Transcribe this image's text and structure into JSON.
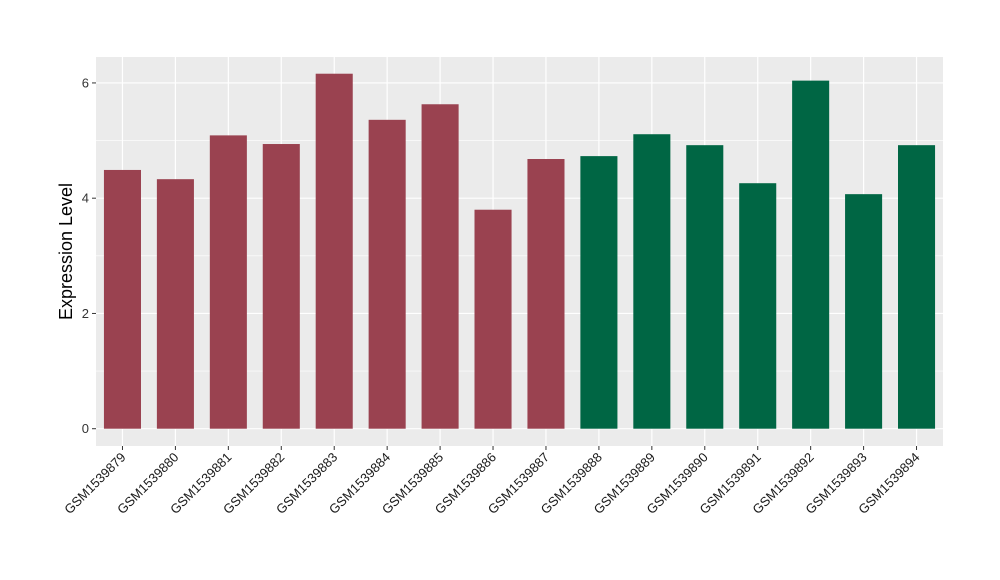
{
  "chart_data": {
    "type": "bar",
    "title": "",
    "xlabel": "",
    "ylabel": "Expression Level",
    "ylim": [
      -0.3,
      6.45
    ],
    "yticks": [
      0,
      2,
      4,
      6
    ],
    "grid": true,
    "panel_background": "#EBEBEB",
    "categories": [
      "GSM1539879",
      "GSM1539880",
      "GSM1539881",
      "GSM1539882",
      "GSM1539883",
      "GSM1539884",
      "GSM1539885",
      "GSM1539886",
      "GSM1539887",
      "GSM1539888",
      "GSM1539889",
      "GSM1539890",
      "GSM1539891",
      "GSM1539892",
      "GSM1539893",
      "GSM1539894"
    ],
    "values": [
      4.49,
      4.33,
      5.09,
      4.94,
      6.16,
      5.36,
      5.63,
      3.8,
      4.68,
      4.73,
      5.11,
      4.92,
      4.26,
      6.04,
      4.07,
      4.92
    ],
    "bar_colors": [
      "#9A4250",
      "#9A4250",
      "#9A4250",
      "#9A4250",
      "#9A4250",
      "#9A4250",
      "#9A4250",
      "#9A4250",
      "#9A4250",
      "#006644",
      "#006644",
      "#006644",
      "#006644",
      "#006644",
      "#006644",
      "#006644"
    ]
  }
}
